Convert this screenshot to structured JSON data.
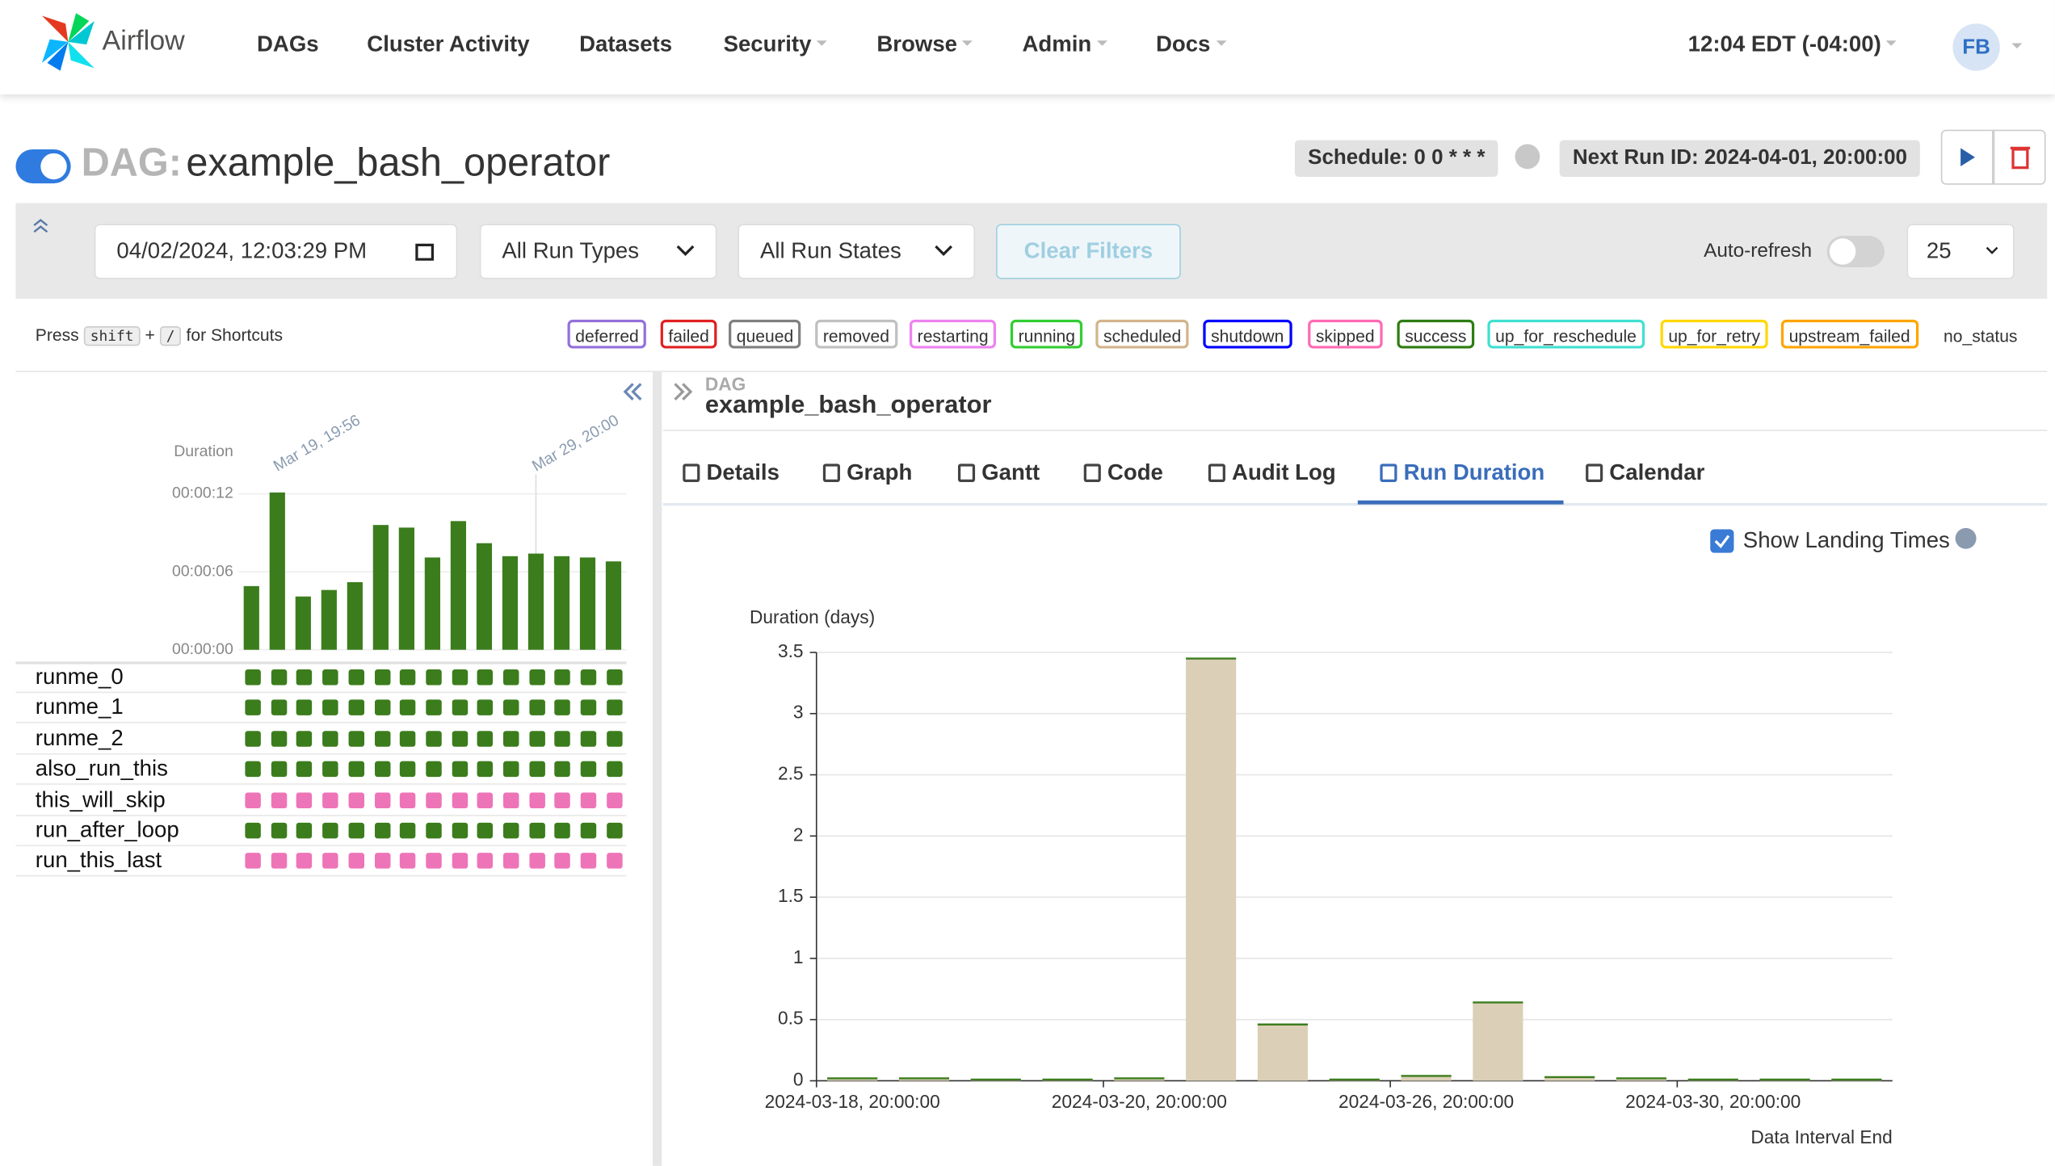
{
  "nav": {
    "brand": "Airflow",
    "items": [
      "DAGs",
      "Cluster Activity",
      "Datasets",
      "Security",
      "Browse",
      "Admin",
      "Docs"
    ],
    "time": "12:04 EDT (-04:00)",
    "user": "FB"
  },
  "dag": {
    "prefix": "DAG:",
    "id": "example_bash_operator",
    "schedule": "Schedule: 0 0 * * *",
    "next_run": "Next Run ID: 2024-04-01, 20:00:00"
  },
  "filters": {
    "date": "04/02/2024, 12:03:29 PM",
    "run_types": "All Run Types",
    "run_states": "All Run States",
    "clear": "Clear Filters",
    "auto_refresh": "Auto-refresh",
    "page_size": "25"
  },
  "shortcuts": {
    "press": "Press",
    "key1": "shift",
    "plus": "+",
    "key2": "/",
    "tail": "for Shortcuts"
  },
  "states": [
    {
      "name": "deferred",
      "color": "#9370db"
    },
    {
      "name": "failed",
      "color": "#e02020"
    },
    {
      "name": "queued",
      "color": "#808080"
    },
    {
      "name": "removed",
      "color": "#c0c0c0"
    },
    {
      "name": "restarting",
      "color": "#ee82ee"
    },
    {
      "name": "running",
      "color": "#32cd32"
    },
    {
      "name": "scheduled",
      "color": "#d2b48c"
    },
    {
      "name": "shutdown",
      "color": "#0000ff"
    },
    {
      "name": "skipped",
      "color": "#ff69b4"
    },
    {
      "name": "success",
      "color": "#2e7d12"
    },
    {
      "name": "up_for_reschedule",
      "color": "#40e0d0"
    },
    {
      "name": "up_for_retry",
      "color": "#ffd700"
    },
    {
      "name": "upstream_failed",
      "color": "#ffa500"
    },
    {
      "name": "no_status",
      "color": null
    }
  ],
  "tasks": [
    {
      "name": "runme_0",
      "color": "#3b7d1c"
    },
    {
      "name": "runme_1",
      "color": "#3b7d1c"
    },
    {
      "name": "runme_2",
      "color": "#3b7d1c"
    },
    {
      "name": "also_run_this",
      "color": "#3b7d1c"
    },
    {
      "name": "this_will_skip",
      "color": "#ee74b8"
    },
    {
      "name": "run_after_loop",
      "color": "#3b7d1c"
    },
    {
      "name": "run_this_last",
      "color": "#ee74b8"
    }
  ],
  "details": {
    "breadcrumb": "DAG",
    "title": "example_bash_operator",
    "tabs": [
      "Details",
      "Graph",
      "Gantt",
      "Code",
      "Audit Log",
      "Run Duration",
      "Calendar"
    ],
    "active_tab": 5,
    "show_landing": "Show Landing Times"
  },
  "chart_data": [
    {
      "type": "bar",
      "ylabel": "Duration",
      "categories": [
        null,
        "Mar 19, 19:56",
        null,
        null,
        null,
        null,
        null,
        null,
        null,
        null,
        null,
        "Mar 29, 20:00",
        null,
        null,
        null
      ],
      "values": [
        4.9,
        12.1,
        4.1,
        4.6,
        5.2,
        9.6,
        9.4,
        7.1,
        9.9,
        8.2,
        7.2,
        7.4,
        7.2,
        7.1,
        6.8
      ],
      "color": "#3b7d1c",
      "ylim": [
        0,
        13
      ],
      "yticks": [
        {
          "value": 0,
          "label": "00:00:00"
        },
        {
          "value": 6,
          "label": "00:00:06"
        },
        {
          "value": 12,
          "label": "00:00:12"
        }
      ]
    },
    {
      "type": "bar",
      "ylabel": "Duration (days)",
      "xlabel": "Data Interval End",
      "categories": [
        "2024-03-18, 20:00:00",
        null,
        null,
        null,
        "2024-03-20, 20:00:00",
        null,
        null,
        null,
        "2024-03-26, 20:00:00",
        null,
        null,
        null,
        "2024-03-30, 20:00:00",
        null,
        null
      ],
      "values": [
        0.02,
        0.02,
        0.01,
        0.01,
        0.02,
        3.45,
        0.46,
        0.01,
        0.04,
        0.64,
        0.03,
        0.02,
        0.01,
        0.01,
        0.01
      ],
      "color": "#dccfb7",
      "edge_color": "#3b7d1c",
      "ylim": [
        0,
        3.5
      ],
      "yticks": [
        0,
        0.5,
        1,
        1.5,
        2,
        2.5,
        3,
        3.5
      ],
      "grid": true
    }
  ]
}
